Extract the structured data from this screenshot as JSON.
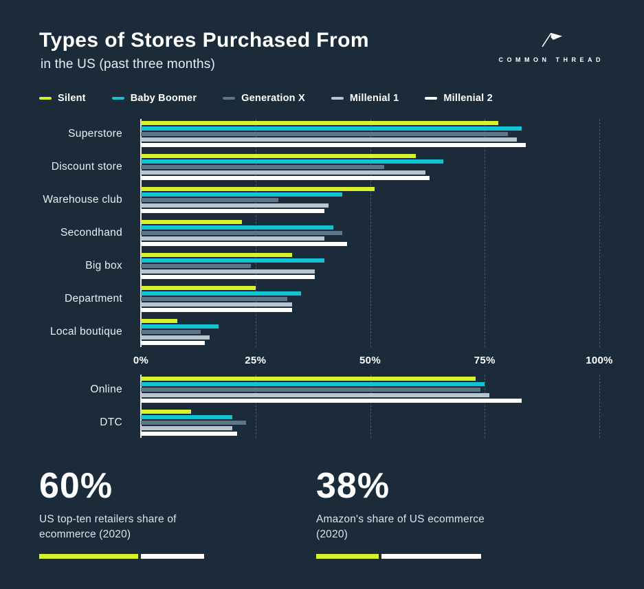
{
  "title": "Types of Stores Purchased From",
  "subtitle": "in the US (past three months)",
  "brand": {
    "name": "COMMON THREAD"
  },
  "chart_data": {
    "type": "bar",
    "orientation": "horizontal",
    "title": "Types of Stores Purchased From in the US (past three months)",
    "xlabel": "",
    "ylabel": "",
    "xlim": [
      0,
      100
    ],
    "grid": "dashed-vertical",
    "legend_position": "top",
    "x_ticks": [
      {
        "label": "0%",
        "value": 0
      },
      {
        "label": "25%",
        "value": 25
      },
      {
        "label": "50%",
        "value": 50
      },
      {
        "label": "75%",
        "value": 75
      },
      {
        "label": "100%",
        "value": 100
      }
    ],
    "series": [
      {
        "name": "Silent",
        "color": "#d8f22b"
      },
      {
        "name": "Baby Boomer",
        "color": "#12c3d3"
      },
      {
        "name": "Generation X",
        "color": "#5d7689"
      },
      {
        "name": "Millenial 1",
        "color": "#b9c6ce"
      },
      {
        "name": "Millenial 2",
        "color": "#ffffff"
      }
    ],
    "groups": [
      {
        "label": "Superstore",
        "values": [
          78,
          83,
          80,
          82,
          84
        ]
      },
      {
        "label": "Discount store",
        "values": [
          60,
          66,
          53,
          62,
          63
        ]
      },
      {
        "label": "Warehouse club",
        "values": [
          51,
          44,
          30,
          41,
          40
        ]
      },
      {
        "label": "Secondhand",
        "values": [
          22,
          42,
          44,
          40,
          45
        ]
      },
      {
        "label": "Big box",
        "values": [
          33,
          40,
          24,
          38,
          38
        ]
      },
      {
        "label": "Department",
        "values": [
          25,
          35,
          32,
          33,
          33
        ]
      },
      {
        "label": "Local boutique",
        "values": [
          8,
          17,
          13,
          15,
          14
        ]
      }
    ],
    "groups_secondary": [
      {
        "label": "Online",
        "values": [
          73,
          75,
          74,
          76,
          83
        ]
      },
      {
        "label": "DTC",
        "values": [
          11,
          20,
          23,
          20,
          21
        ]
      }
    ]
  },
  "stats": [
    {
      "value": "60%",
      "percent": 60,
      "label": "US top-ten retailers share of ecommerce (2020)",
      "fill_color": "#d8f22b",
      "rest_color": "#ffffff"
    },
    {
      "value": "38%",
      "percent": 38,
      "label": "Amazon's share of US ecommerce (2020)",
      "fill_color": "#d8f22b",
      "rest_color": "#ffffff"
    }
  ]
}
